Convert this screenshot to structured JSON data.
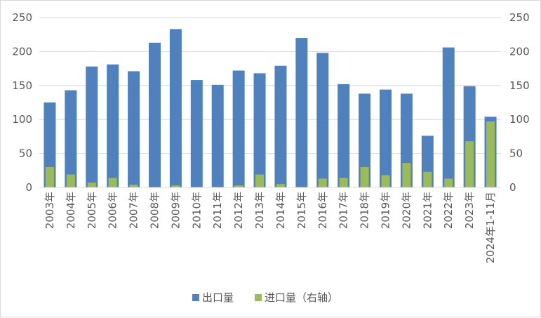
{
  "chart_data": {
    "type": "bar",
    "categories": [
      "2003年",
      "2004年",
      "2005年",
      "2006年",
      "2007年",
      "2008年",
      "2009年",
      "2010年",
      "2011年",
      "2012年",
      "2013年",
      "2014年",
      "2015年",
      "2016年",
      "2017年",
      "2018年",
      "2019年",
      "2020年",
      "2021年",
      "2022年",
      "2023年",
      "2024年1-11月"
    ],
    "series": [
      {
        "name": "出口量",
        "axis": "left",
        "color": "#4e81bd",
        "values": [
          125,
          143,
          178,
          181,
          171,
          213,
          233,
          158,
          151,
          172,
          168,
          179,
          220,
          198,
          152,
          138,
          144,
          138,
          76,
          206,
          149,
          104
        ]
      },
      {
        "name": "进口量（右轴）",
        "axis": "right",
        "color": "#9bbb59",
        "values": [
          30,
          19,
          7,
          14,
          4,
          0,
          3,
          0,
          0,
          3,
          19,
          5,
          0,
          13,
          14,
          30,
          18,
          36,
          23,
          13,
          68,
          97
        ]
      }
    ],
    "y_left": {
      "min": 0,
      "max": 250,
      "ticks": [
        0,
        50,
        100,
        150,
        200,
        250
      ]
    },
    "y_right": {
      "min": 0,
      "max": 250,
      "ticks": [
        0,
        50,
        100,
        150,
        200,
        250
      ]
    },
    "grid": true,
    "legend_position": "bottom"
  }
}
